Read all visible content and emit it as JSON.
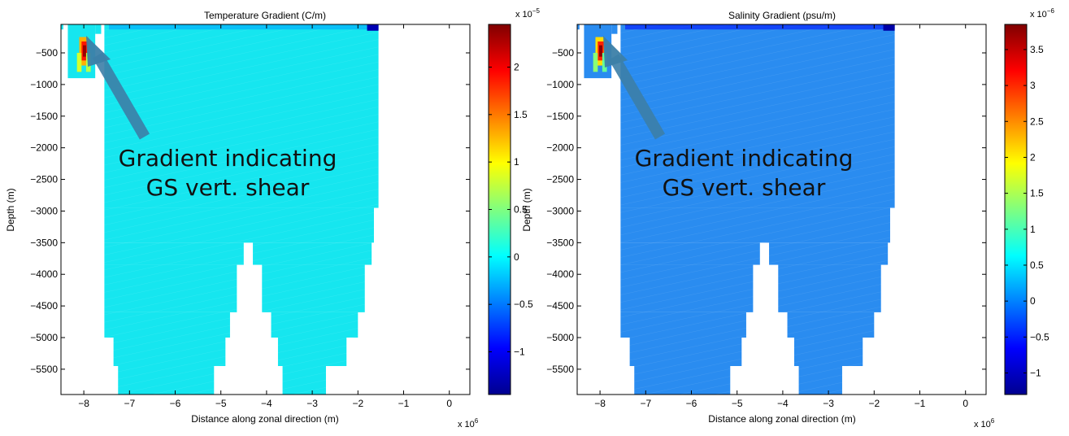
{
  "chart_data": [
    {
      "type": "heatmap",
      "title": "Temperature Gradient (C/m)",
      "xlabel": "Distance along zonal direction (m)",
      "ylabel": "Depth (m)",
      "x_multiplier": "x 10",
      "x_multiplier_exp": "6",
      "xlim": [
        -8.5,
        0.45
      ],
      "ylim": [
        -5900,
        -50
      ],
      "xticks": [
        -8,
        -7,
        -6,
        -5,
        -4,
        -3,
        -2,
        -1,
        0
      ],
      "yticks": [
        -500,
        -1000,
        -1500,
        -2000,
        -2500,
        -3000,
        -3500,
        -4000,
        -4500,
        -5000,
        -5500
      ],
      "colorbar": {
        "multiplier": "x 10",
        "multiplier_exp": "−5",
        "ticks": [
          2,
          1.5,
          1,
          0.5,
          0,
          -0.5,
          -1
        ],
        "range": [
          -1.45,
          2.45
        ]
      },
      "background_value": 0.15,
      "surface_value": -0.35,
      "deep_min_value": -1.3,
      "hotspot": {
        "x_range": [
          -8.05,
          -7.85
        ],
        "depth_range": [
          -250,
          -700
        ],
        "value_max": 2.35
      },
      "annotation": [
        "Gradient indicating",
        "GS vert. shear"
      ]
    },
    {
      "type": "heatmap",
      "title": "Salinity Gradient (psu/m)",
      "xlabel": "Distance along zonal direction (m)",
      "ylabel": "Depth (m)",
      "x_multiplier": "x 10",
      "x_multiplier_exp": "6",
      "xlim": [
        -8.5,
        0.45
      ],
      "ylim": [
        -5900,
        -50
      ],
      "xticks": [
        -8,
        -7,
        -6,
        -5,
        -4,
        -3,
        -2,
        -1,
        0
      ],
      "yticks": [
        -500,
        -1000,
        -1500,
        -2000,
        -2500,
        -3000,
        -3500,
        -4000,
        -4500,
        -5000,
        -5500
      ],
      "colorbar": {
        "multiplier": "x 10",
        "multiplier_exp": "−6",
        "ticks": [
          3.5,
          3,
          2.5,
          2,
          1.5,
          1,
          0.5,
          0,
          -0.5,
          -1
        ],
        "range": [
          -1.3,
          3.85
        ]
      },
      "background_value": 0.2,
      "surface_value": -0.6,
      "deep_min_value": -1.2,
      "hotspot": {
        "x_range": [
          -8.05,
          -7.85
        ],
        "depth_range": [
          -250,
          -650
        ],
        "value_max": 3.8
      },
      "annotation": [
        "Gradient indicating",
        "GS vert. shear"
      ]
    }
  ],
  "colors": {
    "temp_fill": "#16e6ef",
    "sal_fill": "#2a8cf0",
    "arrow": "#3c7fa8"
  }
}
